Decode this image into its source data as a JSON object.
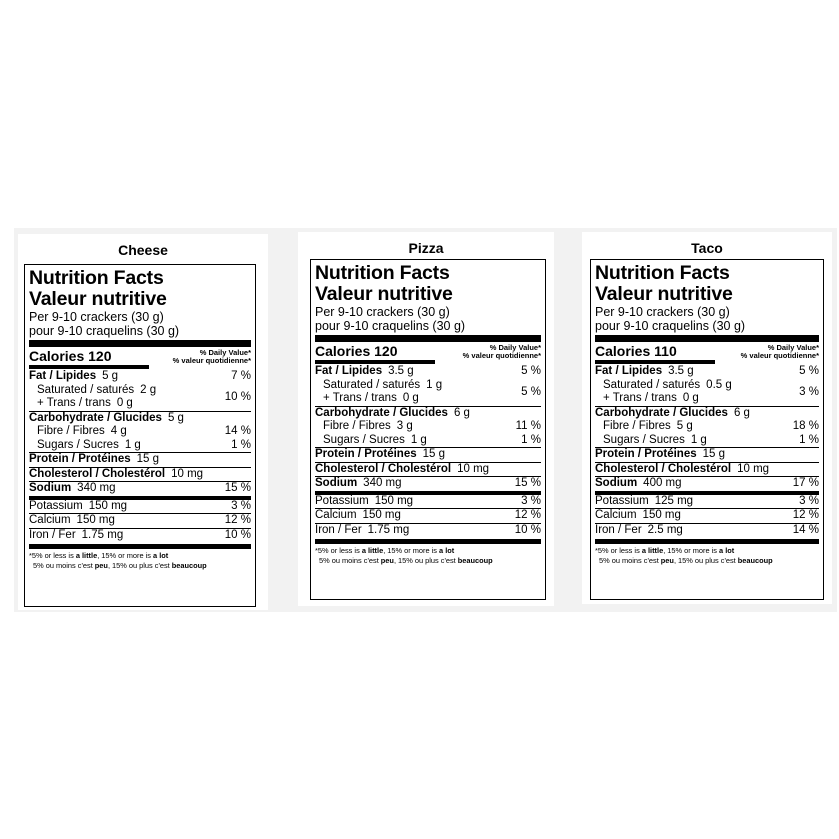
{
  "labels": [
    {
      "name": "Cheese",
      "title_en": "Nutrition Facts",
      "title_fr": "Valeur nutritive",
      "serving_en": "Per 9-10 crackers (30 g)",
      "serving_fr": "pour 9-10 craquelins (30 g)",
      "calories_label": "Calories",
      "calories": "120",
      "dv_en": "% Daily Value*",
      "dv_fr": "% valeur quotidienne*",
      "fat_label": "Fat / Lipides",
      "fat": "5 g",
      "fat_dv": "7 %",
      "sat_label": "Saturated / saturés",
      "sat": "2 g",
      "trans_label": "+ Trans / trans",
      "trans": "0 g",
      "sat_trans_dv": "10 %",
      "carb_label": "Carbohydrate / Glucides",
      "carb": "5 g",
      "fibre_label": "Fibre / Fibres",
      "fibre": "4 g",
      "fibre_dv": "14 %",
      "sugars_label": "Sugars / Sucres",
      "sugars": "1 g",
      "sugars_dv": "1 %",
      "protein_label": "Protein / Protéines",
      "protein": "15 g",
      "chol_label": "Cholesterol / Cholestérol",
      "chol": "10 mg",
      "sodium_label": "Sodium",
      "sodium": "340 mg",
      "sodium_dv": "15 %",
      "potassium_label": "Potassium",
      "potassium": "150 mg",
      "potassium_dv": "3 %",
      "calcium_label": "Calcium",
      "calcium": "150 mg",
      "calcium_dv": "12 %",
      "iron_label": "Iron / Fer",
      "iron": "1.75 mg",
      "iron_dv": "10 %",
      "fn1_a": "*5% or less is ",
      "fn1_b": "a little",
      "fn1_c": ", 15% or more is ",
      "fn1_d": "a lot",
      "fn2_a": "5% ou moins c'est ",
      "fn2_b": "peu",
      "fn2_c": ", 15% ou plus c'est ",
      "fn2_d": "beaucoup"
    },
    {
      "name": "Pizza",
      "title_en": "Nutrition Facts",
      "title_fr": "Valeur nutritive",
      "serving_en": "Per 9-10 crackers (30 g)",
      "serving_fr": "pour 9-10 craquelins (30 g)",
      "calories_label": "Calories",
      "calories": "120",
      "dv_en": "% Daily Value*",
      "dv_fr": "% valeur quotidienne*",
      "fat_label": "Fat / Lipides",
      "fat": "3.5 g",
      "fat_dv": "5 %",
      "sat_label": "Saturated / saturés",
      "sat": "1 g",
      "trans_label": "+ Trans / trans",
      "trans": "0 g",
      "sat_trans_dv": "5 %",
      "carb_label": "Carbohydrate / Glucides",
      "carb": "6 g",
      "fibre_label": "Fibre / Fibres",
      "fibre": "3 g",
      "fibre_dv": "11 %",
      "sugars_label": "Sugars / Sucres",
      "sugars": "1 g",
      "sugars_dv": "1 %",
      "protein_label": "Protein / Protéines",
      "protein": "15 g",
      "chol_label": "Cholesterol / Cholestérol",
      "chol": "10 mg",
      "sodium_label": "Sodium",
      "sodium": "340 mg",
      "sodium_dv": "15 %",
      "potassium_label": "Potassium",
      "potassium": "150 mg",
      "potassium_dv": "3 %",
      "calcium_label": "Calcium",
      "calcium": "150 mg",
      "calcium_dv": "12 %",
      "iron_label": "Iron / Fer",
      "iron": "1.75 mg",
      "iron_dv": "10 %",
      "fn1_a": "*5% or less is ",
      "fn1_b": "a little",
      "fn1_c": ", 15% or more is ",
      "fn1_d": "a lot",
      "fn2_a": "5% ou moins c'est ",
      "fn2_b": "peu",
      "fn2_c": ", 15% ou plus c'est ",
      "fn2_d": "beaucoup"
    },
    {
      "name": "Taco",
      "title_en": "Nutrition Facts",
      "title_fr": "Valeur nutritive",
      "serving_en": "Per 9-10 crackers (30 g)",
      "serving_fr": "pour 9-10 craquelins (30 g)",
      "calories_label": "Calories",
      "calories": "110",
      "dv_en": "% Daily Value*",
      "dv_fr": "% valeur quotidienne*",
      "fat_label": "Fat / Lipides",
      "fat": "3.5 g",
      "fat_dv": "5 %",
      "sat_label": "Saturated / saturés",
      "sat": "0.5 g",
      "trans_label": "+ Trans / trans",
      "trans": "0 g",
      "sat_trans_dv": "3 %",
      "carb_label": "Carbohydrate / Glucides",
      "carb": "6 g",
      "fibre_label": "Fibre / Fibres",
      "fibre": "5 g",
      "fibre_dv": "18 %",
      "sugars_label": "Sugars / Sucres",
      "sugars": "1 g",
      "sugars_dv": "1 %",
      "protein_label": "Protein / Protéines",
      "protein": "15 g",
      "chol_label": "Cholesterol / Cholestérol",
      "chol": "10 mg",
      "sodium_label": "Sodium",
      "sodium": "400 mg",
      "sodium_dv": "17 %",
      "potassium_label": "Potassium",
      "potassium": "125 mg",
      "potassium_dv": "3 %",
      "calcium_label": "Calcium",
      "calcium": "150 mg",
      "calcium_dv": "12 %",
      "iron_label": "Iron / Fer",
      "iron": "2.5 mg",
      "iron_dv": "14 %",
      "fn1_a": "*5% or less is ",
      "fn1_b": "a little",
      "fn1_c": ", 15% or more is ",
      "fn1_d": "a lot",
      "fn2_a": "5% ou moins c'est ",
      "fn2_b": "peu",
      "fn2_c": ", 15% ou plus c'est ",
      "fn2_d": "beaucoup"
    }
  ]
}
